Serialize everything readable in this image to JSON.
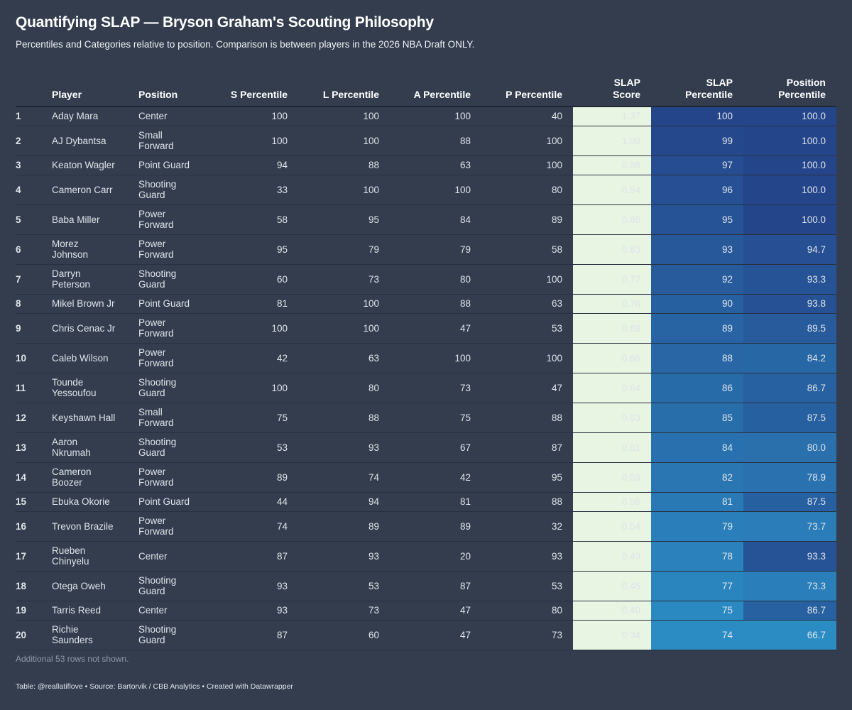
{
  "title": "Quantifying SLAP — Bryson Graham's Scouting Philosophy",
  "subtitle": "Percentiles and Categories relative to position. Comparison is between players in the 2026 NBA Draft ONLY.",
  "chart_data": {
    "type": "table",
    "columns": [
      "",
      "Player",
      "Position",
      "S Percentile",
      "L Percentile",
      "A Percentile",
      "P Percentile",
      "SLAP Score",
      "SLAP Percentile",
      "Position Percentile"
    ],
    "rows": [
      [
        "1",
        "Aday Mara",
        "Center",
        100,
        100,
        100,
        40,
        "1.37",
        100,
        "100.0"
      ],
      [
        "2",
        "AJ Dybantsa",
        "Small Forward",
        100,
        100,
        88,
        100,
        "1.09",
        99,
        "100.0"
      ],
      [
        "3",
        "Keaton Wagler",
        "Point Guard",
        94,
        88,
        63,
        100,
        "0.98",
        97,
        "100.0"
      ],
      [
        "4",
        "Cameron Carr",
        "Shooting Guard",
        33,
        100,
        100,
        80,
        "0.94",
        96,
        "100.0"
      ],
      [
        "5",
        "Baba Miller",
        "Power Forward",
        58,
        95,
        84,
        89,
        "0.86",
        95,
        "100.0"
      ],
      [
        "6",
        "Morez Johnson",
        "Power Forward",
        95,
        79,
        79,
        58,
        "0.83",
        93,
        "94.7"
      ],
      [
        "7",
        "Darryn Peterson",
        "Shooting Guard",
        60,
        73,
        80,
        100,
        "0.77",
        92,
        "93.3"
      ],
      [
        "8",
        "Mikel Brown Jr",
        "Point Guard",
        81,
        100,
        88,
        63,
        "0.76",
        90,
        "93.8"
      ],
      [
        "9",
        "Chris Cenac Jr",
        "Power Forward",
        100,
        100,
        47,
        53,
        "0.69",
        89,
        "89.5"
      ],
      [
        "10",
        "Caleb Wilson",
        "Power Forward",
        42,
        63,
        100,
        100,
        "0.66",
        88,
        "84.2"
      ],
      [
        "11",
        "Tounde Yessoufou",
        "Shooting Guard",
        100,
        80,
        73,
        47,
        "0.64",
        86,
        "86.7"
      ],
      [
        "12",
        "Keyshawn Hall",
        "Small Forward",
        75,
        88,
        75,
        88,
        "0.63",
        85,
        "87.5"
      ],
      [
        "13",
        "Aaron Nkrumah",
        "Shooting Guard",
        53,
        93,
        67,
        87,
        "0.61",
        84,
        "80.0"
      ],
      [
        "14",
        "Cameron Boozer",
        "Power Forward",
        89,
        74,
        42,
        95,
        "0.59",
        82,
        "78.9"
      ],
      [
        "15",
        "Ebuka Okorie",
        "Point Guard",
        44,
        94,
        81,
        88,
        "0.56",
        81,
        "87.5"
      ],
      [
        "16",
        "Trevon Brazile",
        "Power Forward",
        74,
        89,
        89,
        32,
        "0.54",
        79,
        "73.7"
      ],
      [
        "17",
        "Rueben Chinyelu",
        "Center",
        87,
        93,
        20,
        93,
        "0.49",
        78,
        "93.3"
      ],
      [
        "18",
        "Otega Oweh",
        "Shooting Guard",
        93,
        53,
        87,
        53,
        "0.45",
        77,
        "73.3"
      ],
      [
        "19",
        "Tarris Reed",
        "Center",
        93,
        73,
        47,
        80,
        "0.40",
        75,
        "86.7"
      ],
      [
        "20",
        "Richie Saunders",
        "Shooting Guard",
        87,
        60,
        47,
        73,
        "0.34",
        74,
        "66.7"
      ]
    ],
    "score_color": "#e8f5e2",
    "heat_scale": {
      "low": "#2b8cc4",
      "high": "#25458a"
    }
  },
  "note": "Additional 53 rows not shown.",
  "credit": "Table: @reallatiflove • Source: Bartorvik / CBB Analytics • Created with Datawrapper"
}
